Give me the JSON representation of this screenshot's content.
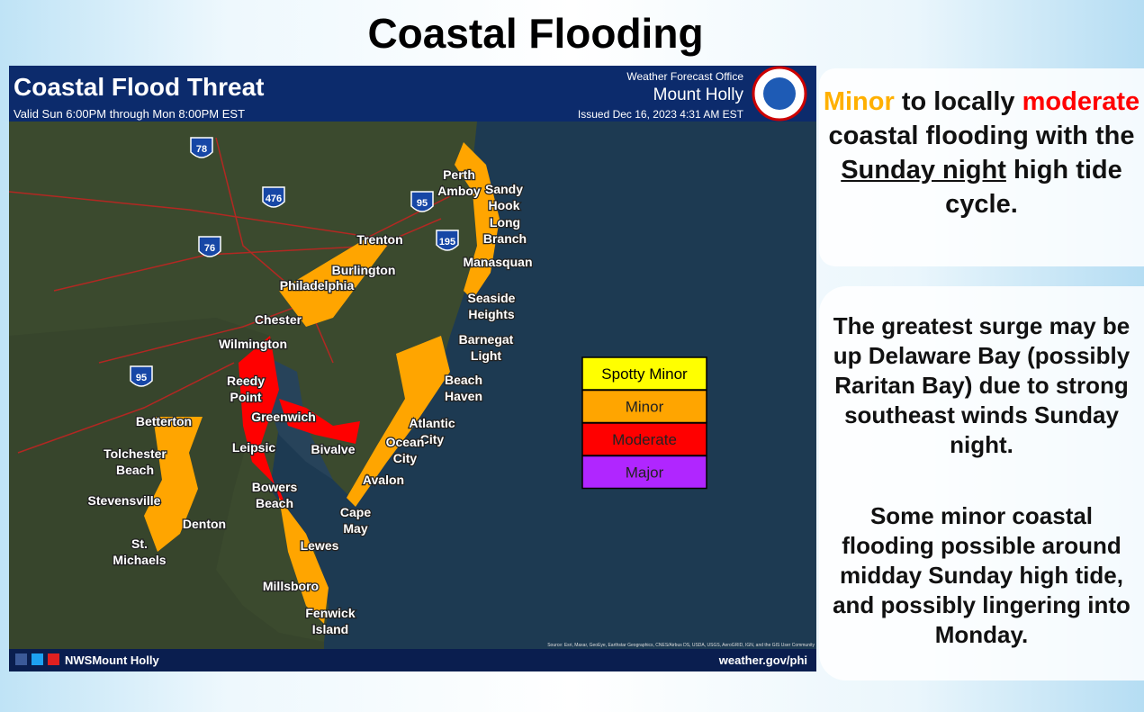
{
  "title": "Coastal Flooding",
  "map": {
    "header": {
      "title": "Coastal Flood Threat",
      "valid": "Valid Sun 6:00PM through Mon 8:00PM EST",
      "office": "Weather Forecast Office",
      "office_name": "Mount Holly",
      "issued": "Issued Dec 16, 2023 4:31 AM EST"
    },
    "shields": [
      "78",
      "476",
      "95",
      "76",
      "195",
      "95"
    ],
    "places": [
      {
        "lines": [
          "Perth",
          "Amboy"
        ]
      },
      {
        "lines": [
          "Sandy",
          "Hook"
        ]
      },
      {
        "lines": [
          "Long",
          "Branch"
        ]
      },
      {
        "lines": [
          "Trenton"
        ]
      },
      {
        "lines": [
          "Manasquan"
        ]
      },
      {
        "lines": [
          "Burlington"
        ]
      },
      {
        "lines": [
          "Philadelphia"
        ]
      },
      {
        "lines": [
          "Seaside",
          "Heights"
        ]
      },
      {
        "lines": [
          "Chester"
        ]
      },
      {
        "lines": [
          "Barnegat",
          "Light"
        ]
      },
      {
        "lines": [
          "Wilmington"
        ]
      },
      {
        "lines": [
          "Reedy",
          "Point"
        ]
      },
      {
        "lines": [
          "Beach",
          "Haven"
        ]
      },
      {
        "lines": [
          "Greenwich"
        ]
      },
      {
        "lines": [
          "Betterton"
        ]
      },
      {
        "lines": [
          "Atlantic",
          "City"
        ]
      },
      {
        "lines": [
          "Leipsic"
        ]
      },
      {
        "lines": [
          "Bivalve"
        ]
      },
      {
        "lines": [
          "Ocean",
          "City"
        ]
      },
      {
        "lines": [
          "Tolchester",
          "Beach"
        ]
      },
      {
        "lines": [
          "Avalon"
        ]
      },
      {
        "lines": [
          "Bowers",
          "Beach"
        ]
      },
      {
        "lines": [
          "Stevensville"
        ]
      },
      {
        "lines": [
          "Cape",
          "May"
        ]
      },
      {
        "lines": [
          "Denton"
        ]
      },
      {
        "lines": [
          "Lewes"
        ]
      },
      {
        "lines": [
          "St.",
          "Michaels"
        ]
      },
      {
        "lines": [
          "Millsboro"
        ]
      },
      {
        "lines": [
          "Fenwick",
          "Island"
        ]
      }
    ],
    "legend": [
      {
        "name": "Spotty Minor",
        "color": "#ffff00"
      },
      {
        "name": "Minor",
        "color": "#ffa500"
      },
      {
        "name": "Moderate",
        "color": "#ff0000"
      },
      {
        "name": "Major",
        "color": "#b026ff"
      }
    ],
    "source": "Source: Esri, Maxar, GeoEye, Earthstar Geographics, CNES/Airbus DS, USDA, USGS, AeroGRID, IGN, and the GIS User Community",
    "footer": {
      "handle": "NWSMount Holly",
      "url": "weather.gov/phi"
    }
  },
  "side": {
    "headline": [
      {
        "text": "Minor",
        "color": "#ffb000"
      },
      {
        "text": " to locally "
      },
      {
        "text": "moderate",
        "color": "#ff0000"
      },
      {
        "text": " coastal flooding with the "
      },
      {
        "text": "Sunday night",
        "underline": true
      },
      {
        "text": " high tide cycle."
      }
    ],
    "paragraphs": [
      "The greatest surge may be up Delaware Bay (possibly Raritan Bay) due to strong southeast winds Sunday night.",
      "Some minor coastal flooding possible around midday Sunday high tide, and possibly lingering into Monday."
    ]
  }
}
